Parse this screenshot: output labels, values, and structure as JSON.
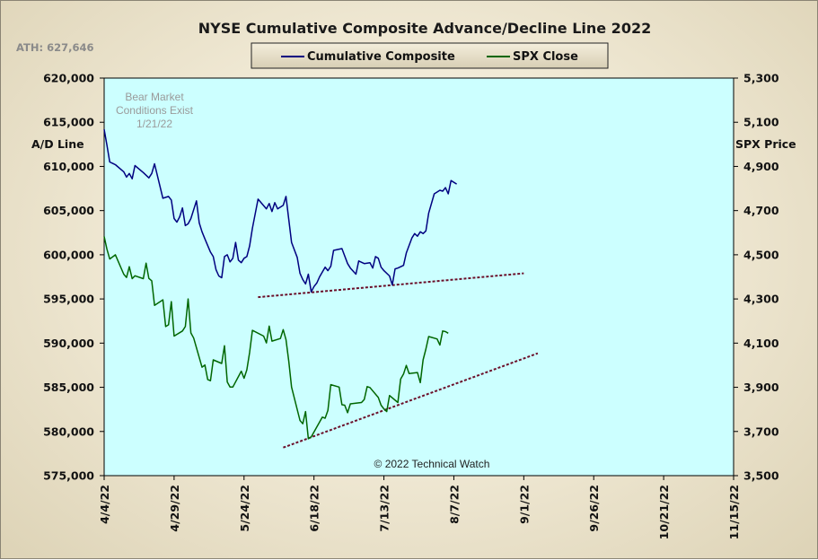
{
  "chart_data": {
    "type": "line",
    "title": "NYSE Cumulative  Composite Advance/Decline Line 2022",
    "ath_note": "ATH: 627,646",
    "annotation": [
      "Bear Market",
      "Conditions  Exist",
      "1/21/22"
    ],
    "copyright": "© 2022 Technical  Watch",
    "ylabel_left": "A/D Line",
    "ylabel_right": "SPX Price",
    "ylim_left": [
      575000,
      620000
    ],
    "ylim_right": [
      3500,
      5300
    ],
    "yticks_left": [
      "620,000",
      "615,000",
      "610,000",
      "605,000",
      "600,000",
      "595,000",
      "590,000",
      "585,000",
      "580,000",
      "575,000"
    ],
    "yticks_right": [
      "5,300",
      "5,100",
      "4,900",
      "4,700",
      "4,500",
      "4,300",
      "4,100",
      "3,900",
      "3,700",
      "3,500"
    ],
    "xlim": [
      "2022-04-04",
      "2022-11-15"
    ],
    "xticks": [
      "4/4/22",
      "4/29/22",
      "5/24/22",
      "6/18/22",
      "7/13/22",
      "8/7/22",
      "9/1/22",
      "9/26/22",
      "10/21/22",
      "11/15/22"
    ],
    "grid": false,
    "legend_position": "top-center",
    "colors": {
      "plot_bg": "#ccffff",
      "ad_line": "#000080",
      "spx": "#006600",
      "trend": "#6b0f2a"
    },
    "series": [
      {
        "name": "Cumulative Composite",
        "axis": "left",
        "points": [
          [
            "2022-04-04",
            614200
          ],
          [
            "2022-04-05",
            612400
          ],
          [
            "2022-04-06",
            610500
          ],
          [
            "2022-04-08",
            610200
          ],
          [
            "2022-04-11",
            609400
          ],
          [
            "2022-04-12",
            608800
          ],
          [
            "2022-04-13",
            609200
          ],
          [
            "2022-04-14",
            608600
          ],
          [
            "2022-04-15",
            610100
          ],
          [
            "2022-04-18",
            609300
          ],
          [
            "2022-04-20",
            608700
          ],
          [
            "2022-04-21",
            609200
          ],
          [
            "2022-04-22",
            610300
          ],
          [
            "2022-04-23",
            609000
          ],
          [
            "2022-04-25",
            606400
          ],
          [
            "2022-04-27",
            606600
          ],
          [
            "2022-04-28",
            606200
          ],
          [
            "2022-04-29",
            604100
          ],
          [
            "2022-04-30",
            603700
          ],
          [
            "2022-05-01",
            604300
          ],
          [
            "2022-05-02",
            605300
          ],
          [
            "2022-05-03",
            603300
          ],
          [
            "2022-05-04",
            603500
          ],
          [
            "2022-05-05",
            604100
          ],
          [
            "2022-05-07",
            606100
          ],
          [
            "2022-05-08",
            603600
          ],
          [
            "2022-05-09",
            602600
          ],
          [
            "2022-05-10",
            601800
          ],
          [
            "2022-05-12",
            600300
          ],
          [
            "2022-05-13",
            599800
          ],
          [
            "2022-05-14",
            598300
          ],
          [
            "2022-05-15",
            597600
          ],
          [
            "2022-05-16",
            597400
          ],
          [
            "2022-05-17",
            599800
          ],
          [
            "2022-05-18",
            600000
          ],
          [
            "2022-05-19",
            599200
          ],
          [
            "2022-05-20",
            599600
          ],
          [
            "2022-05-21",
            601400
          ],
          [
            "2022-05-22",
            599400
          ],
          [
            "2022-05-23",
            599100
          ],
          [
            "2022-05-24",
            599600
          ],
          [
            "2022-05-25",
            599800
          ],
          [
            "2022-05-26",
            601000
          ],
          [
            "2022-05-27",
            603000
          ],
          [
            "2022-05-29",
            606300
          ],
          [
            "2022-06-01",
            605200
          ],
          [
            "2022-06-02",
            605800
          ],
          [
            "2022-06-03",
            604900
          ],
          [
            "2022-06-04",
            605900
          ],
          [
            "2022-06-05",
            605200
          ],
          [
            "2022-06-07",
            605600
          ],
          [
            "2022-06-08",
            606600
          ],
          [
            "2022-06-09",
            604000
          ],
          [
            "2022-06-10",
            601400
          ],
          [
            "2022-06-12",
            599700
          ],
          [
            "2022-06-13",
            597900
          ],
          [
            "2022-06-14",
            597200
          ],
          [
            "2022-06-15",
            596700
          ],
          [
            "2022-06-16",
            597800
          ],
          [
            "2022-06-17",
            595800
          ],
          [
            "2022-06-18",
            596400
          ],
          [
            "2022-06-19",
            596800
          ],
          [
            "2022-06-20",
            597500
          ],
          [
            "2022-06-22",
            598600
          ],
          [
            "2022-06-23",
            598200
          ],
          [
            "2022-06-24",
            598700
          ],
          [
            "2022-06-25",
            600500
          ],
          [
            "2022-06-28",
            600700
          ],
          [
            "2022-06-30",
            599000
          ],
          [
            "2022-07-01",
            598500
          ],
          [
            "2022-07-03",
            597800
          ],
          [
            "2022-07-04",
            599300
          ],
          [
            "2022-07-06",
            599000
          ],
          [
            "2022-07-08",
            599100
          ],
          [
            "2022-07-09",
            598500
          ],
          [
            "2022-07-10",
            599800
          ],
          [
            "2022-07-11",
            599600
          ],
          [
            "2022-07-12",
            598600
          ],
          [
            "2022-07-13",
            598200
          ],
          [
            "2022-07-15",
            597600
          ],
          [
            "2022-07-16",
            596600
          ],
          [
            "2022-07-17",
            598400
          ],
          [
            "2022-07-18",
            598500
          ],
          [
            "2022-07-20",
            598800
          ],
          [
            "2022-07-21",
            600200
          ],
          [
            "2022-07-23",
            601900
          ],
          [
            "2022-07-24",
            602400
          ],
          [
            "2022-07-25",
            602100
          ],
          [
            "2022-07-26",
            602600
          ],
          [
            "2022-07-27",
            602400
          ],
          [
            "2022-07-28",
            602700
          ],
          [
            "2022-07-29",
            604700
          ],
          [
            "2022-07-31",
            606900
          ],
          [
            "2022-08-01",
            607100
          ],
          [
            "2022-08-02",
            607300
          ],
          [
            "2022-08-03",
            607200
          ],
          [
            "2022-08-04",
            607600
          ],
          [
            "2022-08-05",
            606900
          ],
          [
            "2022-08-06",
            608400
          ],
          [
            "2022-08-08",
            608000
          ]
        ]
      },
      {
        "name": "SPX Close",
        "axis": "right",
        "points": [
          [
            "2022-04-04",
            4583
          ],
          [
            "2022-04-05",
            4525
          ],
          [
            "2022-04-06",
            4481
          ],
          [
            "2022-04-08",
            4500
          ],
          [
            "2022-04-11",
            4412
          ],
          [
            "2022-04-12",
            4397
          ],
          [
            "2022-04-13",
            4446
          ],
          [
            "2022-04-14",
            4392
          ],
          [
            "2022-04-15",
            4405
          ],
          [
            "2022-04-18",
            4392
          ],
          [
            "2022-04-19",
            4462
          ],
          [
            "2022-04-20",
            4393
          ],
          [
            "2022-04-21",
            4382
          ],
          [
            "2022-04-22",
            4271
          ],
          [
            "2022-04-25",
            4296
          ],
          [
            "2022-04-26",
            4175
          ],
          [
            "2022-04-27",
            4183
          ],
          [
            "2022-04-28",
            4288
          ],
          [
            "2022-04-29",
            4132
          ],
          [
            "2022-05-02",
            4155
          ],
          [
            "2022-05-03",
            4175
          ],
          [
            "2022-05-04",
            4300
          ],
          [
            "2022-05-05",
            4146
          ],
          [
            "2022-05-06",
            4123
          ],
          [
            "2022-05-09",
            3991
          ],
          [
            "2022-05-10",
            4001
          ],
          [
            "2022-05-11",
            3935
          ],
          [
            "2022-05-12",
            3930
          ],
          [
            "2022-05-13",
            4024
          ],
          [
            "2022-05-16",
            4008
          ],
          [
            "2022-05-17",
            4088
          ],
          [
            "2022-05-18",
            3924
          ],
          [
            "2022-05-19",
            3901
          ],
          [
            "2022-05-20",
            3901
          ],
          [
            "2022-05-23",
            3973
          ],
          [
            "2022-05-24",
            3941
          ],
          [
            "2022-05-25",
            3979
          ],
          [
            "2022-05-26",
            4058
          ],
          [
            "2022-05-27",
            4158
          ],
          [
            "2022-05-31",
            4132
          ],
          [
            "2022-06-01",
            4101
          ],
          [
            "2022-06-02",
            4177
          ],
          [
            "2022-06-03",
            4109
          ],
          [
            "2022-06-06",
            4121
          ],
          [
            "2022-06-07",
            4161
          ],
          [
            "2022-06-08",
            4116
          ],
          [
            "2022-06-09",
            4018
          ],
          [
            "2022-06-10",
            3901
          ],
          [
            "2022-06-13",
            3750
          ],
          [
            "2022-06-14",
            3735
          ],
          [
            "2022-06-15",
            3790
          ],
          [
            "2022-06-16",
            3667
          ],
          [
            "2022-06-17",
            3675
          ],
          [
            "2022-06-21",
            3765
          ],
          [
            "2022-06-22",
            3760
          ],
          [
            "2022-06-23",
            3796
          ],
          [
            "2022-06-24",
            3912
          ],
          [
            "2022-06-27",
            3901
          ],
          [
            "2022-06-28",
            3821
          ],
          [
            "2022-06-29",
            3819
          ],
          [
            "2022-06-30",
            3785
          ],
          [
            "2022-07-01",
            3825
          ],
          [
            "2022-07-05",
            3831
          ],
          [
            "2022-07-06",
            3845
          ],
          [
            "2022-07-07",
            3903
          ],
          [
            "2022-07-08",
            3899
          ],
          [
            "2022-07-11",
            3854
          ],
          [
            "2022-07-12",
            3819
          ],
          [
            "2022-07-13",
            3802
          ],
          [
            "2022-07-14",
            3790
          ],
          [
            "2022-07-15",
            3863
          ],
          [
            "2022-07-18",
            3831
          ],
          [
            "2022-07-19",
            3937
          ],
          [
            "2022-07-20",
            3960
          ],
          [
            "2022-07-21",
            3999
          ],
          [
            "2022-07-22",
            3962
          ],
          [
            "2022-07-25",
            3967
          ],
          [
            "2022-07-26",
            3921
          ],
          [
            "2022-07-27",
            4024
          ],
          [
            "2022-07-28",
            4073
          ],
          [
            "2022-07-29",
            4130
          ],
          [
            "2022-08-01",
            4119
          ],
          [
            "2022-08-02",
            4091
          ],
          [
            "2022-08-03",
            4155
          ],
          [
            "2022-08-04",
            4152
          ],
          [
            "2022-08-05",
            4145
          ]
        ]
      }
    ],
    "trendlines": [
      {
        "axis": "left",
        "start": [
          "2022-05-29",
          595200
        ],
        "end": [
          "2022-09-01",
          597900
        ]
      },
      {
        "axis": "right",
        "start": [
          "2022-06-07",
          3627
        ],
        "end": [
          "2022-09-06",
          4054
        ]
      }
    ]
  }
}
